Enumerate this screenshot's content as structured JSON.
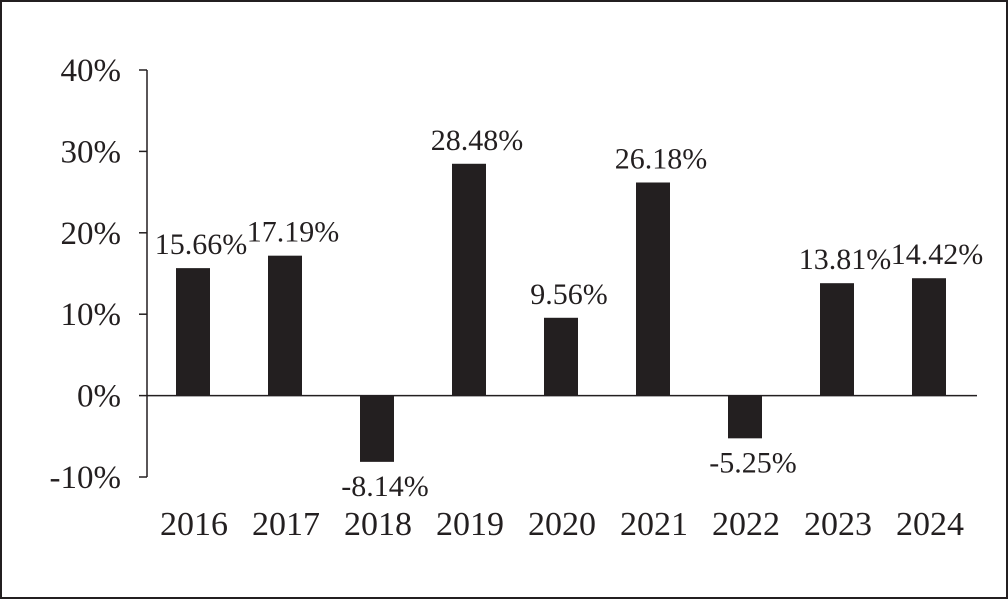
{
  "chart_data": {
    "type": "bar",
    "title": "",
    "xlabel": "",
    "ylabel": "",
    "categories": [
      "2016",
      "2017",
      "2018",
      "2019",
      "2020",
      "2021",
      "2022",
      "2023",
      "2024"
    ],
    "values": [
      15.66,
      17.19,
      -8.14,
      28.48,
      9.56,
      26.18,
      -5.25,
      13.81,
      14.42
    ],
    "value_labels": [
      "15.66%",
      "17.19%",
      "-8.14%",
      "28.48%",
      "9.56%",
      "26.18%",
      "-5.25%",
      "13.81%",
      "14.42%"
    ],
    "ylim": [
      -10,
      40
    ],
    "yticks": [
      -10,
      0,
      10,
      20,
      30,
      40
    ],
    "ytick_labels": [
      "-10%",
      "0%",
      "10%",
      "20%",
      "30%",
      "40%"
    ],
    "grid": false,
    "legend": "none",
    "bar_color": "#231f20",
    "axis_color": "#231f20"
  }
}
